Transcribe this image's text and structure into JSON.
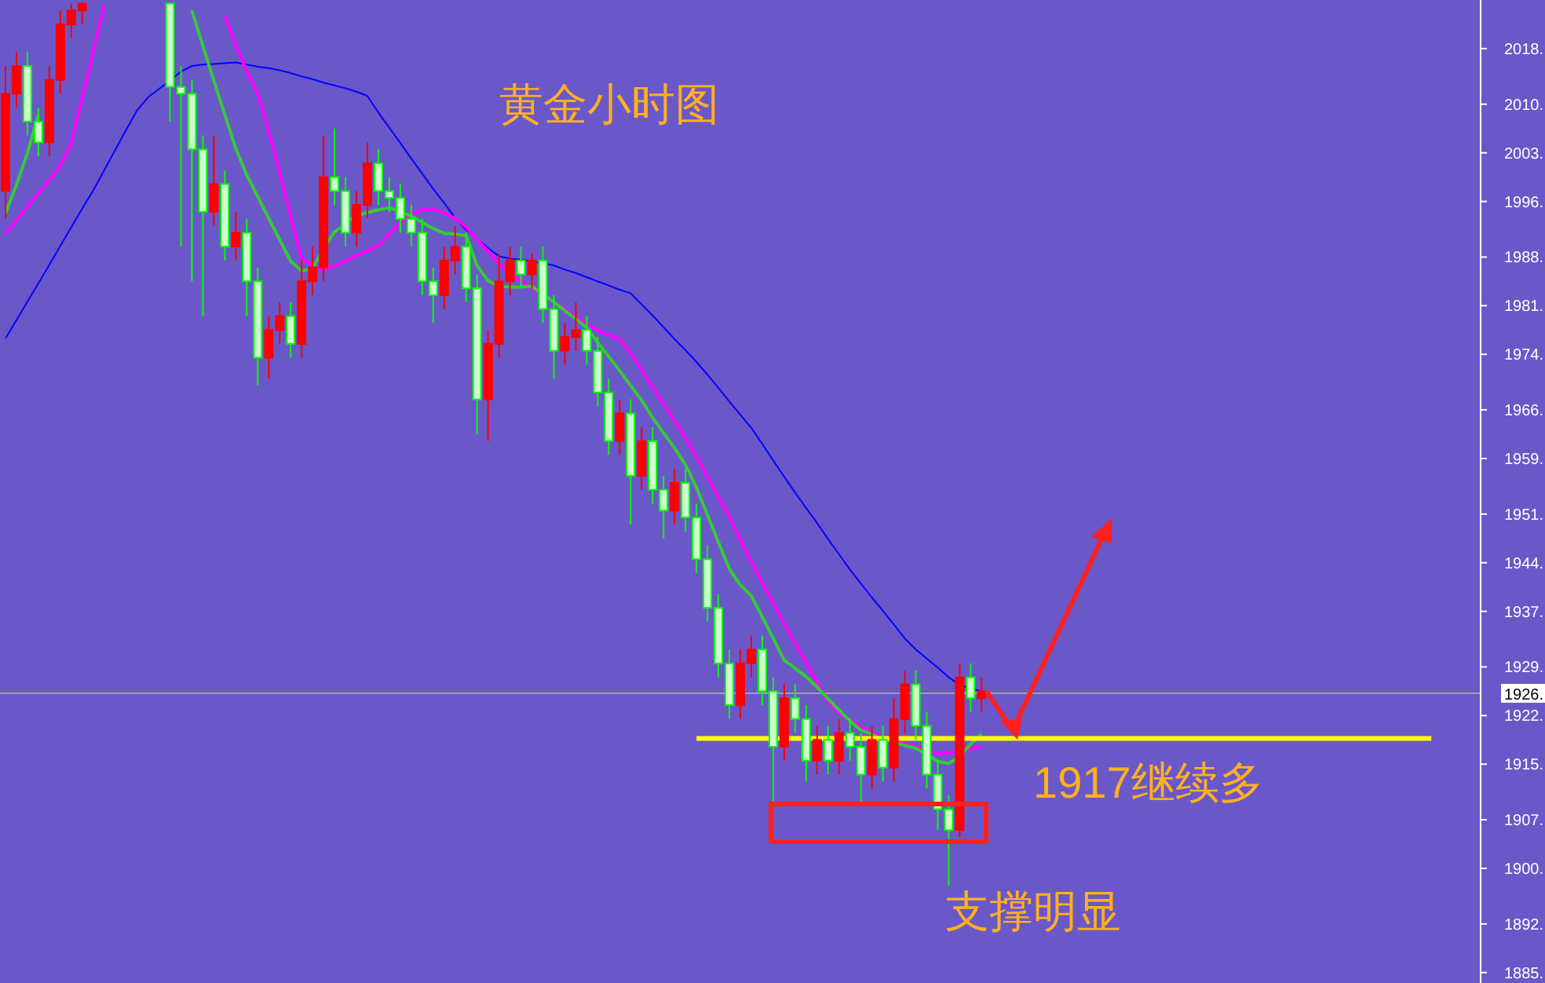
{
  "chart_data": {
    "type": "candlestick",
    "title": "黄金小时图",
    "categories": [
      null,
      null,
      null,
      null,
      null,
      null,
      null,
      null,
      null,
      null,
      null,
      null,
      null,
      null,
      null,
      null,
      null,
      null,
      null,
      null,
      null,
      null,
      null,
      null,
      null,
      null,
      null,
      null,
      null,
      null,
      null,
      null,
      null,
      null,
      null,
      null,
      null,
      null,
      null,
      null,
      null,
      null,
      null,
      null,
      null,
      null,
      null,
      null,
      null,
      null,
      null,
      null,
      null,
      null,
      null,
      null,
      null,
      null,
      null,
      null,
      null,
      null,
      null,
      null,
      null,
      null,
      null,
      null,
      null,
      null,
      null,
      null,
      null,
      null,
      null,
      null,
      null,
      null,
      null,
      null,
      null,
      null,
      null,
      null,
      null,
      null,
      null,
      null,
      null,
      null,
      null,
      null,
      null,
      null,
      null,
      null,
      null,
      null,
      null,
      null,
      null,
      null,
      null,
      null,
      null,
      null,
      null,
      null,
      null,
      null,
      null,
      null,
      null,
      null,
      null,
      null,
      null,
      null,
      null,
      null,
      null,
      null,
      null,
      null,
      null,
      null,
      null,
      null,
      null,
      null,
      null,
      null,
      null,
      null,
      null
    ],
    "ohlc": [
      [
        1998,
        2016,
        1994,
        2012
      ],
      [
        2012,
        2018,
        2010,
        2016
      ],
      [
        2016,
        2018,
        2006,
        2008
      ],
      [
        2008,
        2010,
        2003,
        2005
      ],
      [
        2005,
        2016,
        2003,
        2014
      ],
      [
        2014,
        2024,
        2012,
        2022
      ],
      [
        2022,
        2025,
        2020,
        2024
      ],
      [
        2024,
        2025,
        2022,
        2025
      ],
      null,
      null,
      null,
      null,
      null,
      null,
      null,
      [
        2025,
        2025,
        2008,
        2013
      ],
      [
        2013,
        2016,
        1990,
        2012
      ],
      [
        2012,
        2014,
        1985,
        2004
      ],
      [
        2004,
        2006,
        1980,
        1995
      ],
      [
        1995,
        2006,
        1993,
        1999
      ],
      [
        1999,
        2001,
        1988,
        1990
      ],
      [
        1990,
        1995,
        1988,
        1992
      ],
      [
        1992,
        1994,
        1980,
        1985
      ],
      [
        1985,
        1987,
        1970,
        1974
      ],
      [
        1974,
        1980,
        1971,
        1978
      ],
      [
        1978,
        1982,
        1976,
        1980
      ],
      [
        1980,
        1982,
        1974,
        1976
      ],
      [
        1976,
        1988,
        1974,
        1985
      ],
      [
        1985,
        1990,
        1983,
        1987
      ],
      [
        1987,
        2006,
        1985,
        2000
      ],
      [
        2000,
        2007,
        1996,
        1998
      ],
      [
        1998,
        2000,
        1990,
        1992
      ],
      [
        1992,
        1998,
        1990,
        1996
      ],
      [
        1996,
        2005,
        1994,
        2002
      ],
      [
        2002,
        2004,
        1996,
        1998
      ],
      [
        1998,
        2000,
        1995,
        1997
      ],
      [
        1997,
        1999,
        1992,
        1994
      ],
      [
        1994,
        1996,
        1990,
        1992
      ],
      [
        1992,
        1994,
        1983,
        1985
      ],
      [
        1985,
        1987,
        1979,
        1983
      ],
      [
        1983,
        1990,
        1981,
        1988
      ],
      [
        1988,
        1993,
        1986,
        1990
      ],
      [
        1990,
        1992,
        1982,
        1984
      ],
      [
        1984,
        1986,
        1963,
        1968
      ],
      [
        1968,
        1978,
        1962,
        1976
      ],
      [
        1976,
        1989,
        1974,
        1985
      ],
      [
        1985,
        1990,
        1983,
        1988
      ],
      [
        1988,
        1990,
        1984,
        1986
      ],
      [
        1986,
        1989,
        1984,
        1988
      ],
      [
        1988,
        1990,
        1979,
        1981
      ],
      [
        1981,
        1983,
        1971,
        1975
      ],
      [
        1975,
        1979,
        1973,
        1977
      ],
      [
        1977,
        1982,
        1975,
        1978
      ],
      [
        1978,
        1980,
        1973,
        1975
      ],
      [
        1975,
        1977,
        1967,
        1969
      ],
      [
        1969,
        1971,
        1960,
        1962
      ],
      [
        1962,
        1968,
        1960,
        1966
      ],
      [
        1966,
        1968,
        1950,
        1957
      ],
      [
        1957,
        1964,
        1955,
        1962
      ],
      [
        1962,
        1964,
        1953,
        1955
      ],
      [
        1955,
        1957,
        1948,
        1952
      ],
      [
        1952,
        1958,
        1950,
        1956
      ],
      [
        1956,
        1958,
        1949,
        1951
      ],
      [
        1951,
        1953,
        1943,
        1945
      ],
      [
        1945,
        1947,
        1936,
        1938
      ],
      [
        1938,
        1940,
        1928,
        1930
      ],
      [
        1930,
        1932,
        1922,
        1924
      ],
      [
        1924,
        1932,
        1922,
        1930
      ],
      [
        1930,
        1934,
        1928,
        1932
      ],
      [
        1932,
        1934,
        1924,
        1926
      ],
      [
        1926,
        1928,
        1910,
        1918
      ],
      [
        1918,
        1927,
        1916,
        1925
      ],
      [
        1925,
        1927,
        1920,
        1922
      ],
      [
        1922,
        1924,
        1913,
        1916
      ],
      [
        1916,
        1921,
        1914,
        1919
      ],
      [
        1919,
        1921,
        1914,
        1916
      ],
      [
        1916,
        1922,
        1914,
        1920
      ],
      [
        1920,
        1922,
        1916,
        1918
      ],
      [
        1918,
        1920,
        1910,
        1914
      ],
      [
        1914,
        1921,
        1912,
        1919
      ],
      [
        1919,
        1921,
        1913,
        1915
      ],
      [
        1915,
        1925,
        1913,
        1922
      ],
      [
        1922,
        1929,
        1920,
        1927
      ],
      [
        1927,
        1929,
        1919,
        1921
      ],
      [
        1921,
        1923,
        1912,
        1914
      ],
      [
        1914,
        1916,
        1906,
        1909
      ],
      [
        1909,
        1911,
        1898,
        1906
      ],
      [
        1906,
        1930,
        1905,
        1928
      ],
      [
        1928,
        1930,
        1923,
        1925
      ],
      [
        1925,
        1928,
        1923,
        1926
      ],
      null,
      null,
      null,
      null,
      null,
      null,
      null,
      null,
      null,
      null,
      null,
      null,
      null,
      null,
      null,
      null,
      null,
      null,
      null,
      null,
      null,
      null,
      null,
      null,
      null,
      null,
      null,
      null,
      null,
      null,
      null,
      null,
      null,
      null,
      null,
      null,
      null,
      null,
      null,
      null,
      null,
      null,
      null,
      null,
      null
    ],
    "series": [
      {
        "type": "line",
        "color": "#0000ff",
        "values": [
          1976.8,
          1979.4,
          1982.1,
          1984.7,
          1987.4,
          1990.1,
          1992.8,
          1995.5,
          1998.1,
          2001.0,
          2003.9,
          2006.8,
          2009.6,
          2011.5,
          2012.7,
          2013.9,
          2015.2,
          2016.0,
          2016.2,
          2016.3,
          2016.4,
          2016.5,
          2016.2,
          2015.9,
          2015.7,
          2015.4,
          2015.0,
          2014.5,
          2014.1,
          2013.6,
          2013.2,
          2012.8,
          2012.3,
          2011.7,
          2009.3,
          2007.1,
          2004.9,
          2002.7,
          2000.5,
          1998.3,
          1996.3,
          1994.1,
          1992.4,
          1991.1,
          1989.8,
          1988.6,
          1988.3,
          1988.1,
          1987.9,
          1987.6,
          1987.3,
          1986.7,
          1986.2,
          1985.6,
          1985.0,
          1984.4,
          1983.8,
          1983.3,
          1981.7,
          1980.1,
          1978.4,
          1976.7,
          1975.1,
          1973.4,
          1971.6,
          1969.7,
          1967.7,
          1965.8,
          1963.9,
          1961.6,
          1959.2,
          1956.9,
          1954.6,
          1952.4,
          1950.2,
          1947.9,
          1945.7,
          1943.5,
          1941.5,
          1939.5,
          1937.6,
          1935.6,
          1933.6,
          1932.0,
          1930.7,
          1929.4,
          1928.0,
          1926.9,
          1926.4,
          1926.0,
          null,
          null,
          null,
          null,
          null,
          null,
          null,
          null,
          null,
          null,
          null,
          null,
          null,
          null,
          null,
          null,
          null,
          null,
          null,
          null,
          null,
          null,
          null,
          null,
          null,
          null,
          null,
          null,
          null,
          null,
          null,
          null,
          null,
          null,
          null,
          null,
          null,
          null,
          null,
          null,
          null,
          null,
          null,
          null,
          null
        ]
      },
      {
        "type": "line",
        "color": "#ff00ff",
        "values": [
          1991.9,
          1993.8,
          1995.8,
          1997.7,
          1999.6,
          2001.6,
          2004.9,
          2011.5,
          2018.2,
          2024.8,
          null,
          null,
          null,
          null,
          null,
          null,
          null,
          null,
          null,
          null,
          2023.1,
          2019.1,
          2015.1,
          2012.0,
          2006.7,
          2000.6,
          1994.4,
          1988.3,
          1987.2,
          1986.7,
          1987.2,
          1987.9,
          1988.7,
          1989.4,
          1990.2,
          1991.8,
          1993.4,
          1994.7,
          1995.3,
          1995.4,
          1994.8,
          1994.1,
          1992.8,
          1991.0,
          1989.3,
          1987.5,
          1986.2,
          1985.1,
          1984.0,
          1983.0,
          1982.0,
          1981.0,
          1979.9,
          1978.9,
          1977.9,
          1977.3,
          1976.6,
          1974.7,
          1972.3,
          1969.8,
          1967.4,
          1964.9,
          1962.5,
          1959.8,
          1956.9,
          1954.0,
          1951.1,
          1947.8,
          1944.7,
          1941.6,
          1938.6,
          1935.7,
          1932.9,
          1930.1,
          1927.3,
          1924.5,
          1922.9,
          1921.9,
          1920.9,
          1919.9,
          1919.5,
          1919.0,
          1918.5,
          1918.0,
          1917.6,
          1917.0,
          1917.1,
          1917.4,
          1917.8,
          1918.0,
          null,
          null,
          null,
          null,
          null,
          null,
          null,
          null,
          null,
          null,
          null,
          null,
          null,
          null,
          null,
          null,
          null,
          null,
          null,
          null,
          null,
          null,
          null,
          null,
          null,
          null,
          null,
          null,
          null,
          null,
          null,
          null,
          null,
          null,
          null,
          null,
          null,
          null,
          null,
          null,
          null,
          null,
          null,
          null,
          null
        ]
      },
      {
        "type": "line",
        "color": "#33cc33",
        "values": [
          1994.8,
          1998.9,
          2003.5,
          2009.0,
          null,
          null,
          null,
          null,
          null,
          null,
          null,
          null,
          null,
          null,
          null,
          null,
          null,
          2024.0,
          2018.9,
          2013.9,
          2009.0,
          2004.1,
          2000.3,
          1997.2,
          1994.1,
          1991.0,
          1987.9,
          1986.5,
          1986.8,
          1989.8,
          1992.1,
          1993.3,
          1994.5,
          1994.9,
          1995.3,
          1995.6,
          1995.0,
          1994.4,
          1993.5,
          1992.6,
          1991.9,
          1991.8,
          1991.6,
          1987.2,
          1985.1,
          1984.3,
          1984.2,
          1984.2,
          1984.3,
          1983.2,
          1982.0,
          1980.8,
          1979.6,
          1978.3,
          1976.2,
          1974.2,
          1972.1,
          1970.0,
          1967.9,
          1965.4,
          1963.2,
          1961.0,
          1958.6,
          1955.3,
          1951.4,
          1947.5,
          1943.6,
          1941.3,
          1939.7,
          1936.7,
          1933.6,
          1930.5,
          1929.3,
          1928.1,
          1926.6,
          1924.9,
          1923.3,
          1921.7,
          1920.4,
          1919.8,
          1919.0,
          1918.6,
          1918.2,
          1917.8,
          1916.9,
          1915.9,
          1915.6,
          1916.6,
          1918.4,
          1919.9,
          null,
          null,
          null,
          null,
          null,
          null,
          null,
          null,
          null,
          null,
          null,
          null,
          null,
          null,
          null,
          null,
          null,
          null,
          null,
          null,
          null,
          null,
          null,
          null,
          null,
          null,
          null,
          null,
          null,
          null,
          null,
          null,
          null,
          null,
          null,
          null,
          null,
          null,
          null,
          null,
          null,
          null,
          null,
          null,
          null
        ]
      },
      {
        "type": "line",
        "color": "#ffff00",
        "values": [
          null,
          null,
          null,
          null,
          null,
          null,
          null,
          null,
          null,
          null,
          null,
          null,
          null,
          null,
          null,
          null,
          null,
          null,
          null,
          null,
          null,
          null,
          null,
          null,
          null,
          null,
          null,
          null,
          null,
          null,
          null,
          null,
          null,
          null,
          null,
          null,
          null,
          null,
          null,
          null,
          null,
          null,
          null,
          null,
          null,
          null,
          null,
          null,
          null,
          null,
          null,
          null,
          null,
          null,
          null,
          null,
          null,
          null,
          null,
          null,
          null,
          null,
          null,
          1919.2,
          1919.2,
          1919.2,
          1919.2,
          1919.2,
          1919.2,
          1919.2,
          1919.2,
          1919.2,
          1919.2,
          1919.2,
          1919.2,
          1919.2,
          1919.2,
          1919.2,
          1919.2,
          1919.2,
          1919.2,
          1919.2,
          1919.2,
          1919.2,
          1919.2,
          1919.2,
          1919.2,
          1919.2,
          1919.2,
          1919.2,
          1919.2,
          1919.2,
          1919.2,
          1919.2,
          1919.2,
          1919.2,
          1919.2,
          1919.2,
          1919.2,
          1919.2,
          1919.2,
          1919.2,
          1919.2,
          1919.2,
          1919.2,
          1919.2,
          1919.2,
          1919.2,
          1919.2,
          1919.2,
          1919.2,
          1919.2,
          1919.2,
          1919.2,
          1919.2,
          1919.2,
          1919.2,
          1919.2,
          1919.2,
          1919.2,
          1919.2,
          1919.2,
          1919.2,
          1919.2,
          1919.2,
          1919.2,
          1919.2,
          1919.2,
          1919.2,
          1919.2,
          1919.2,
          null,
          null,
          null,
          null
        ]
      }
    ],
    "ylim": [
      1884,
      2025.5
    ],
    "yticks": [
      {
        "value": 1885.5,
        "label": "1885."
      },
      {
        "value": 1892.5,
        "label": "1892."
      },
      {
        "value": 1900.5,
        "label": "1900."
      },
      {
        "value": 1907.5,
        "label": "1907."
      },
      {
        "value": 1915.5,
        "label": "1915."
      },
      {
        "value": 1922.5,
        "label": "1922."
      },
      {
        "value": 1929.5,
        "label": "1929."
      },
      {
        "value": 1937.5,
        "label": "1937."
      },
      {
        "value": 1944.5,
        "label": "1944."
      },
      {
        "value": 1951.5,
        "label": "1951."
      },
      {
        "value": 1959.5,
        "label": "1959."
      },
      {
        "value": 1966.5,
        "label": "1966."
      },
      {
        "value": 1974.5,
        "label": "1974."
      },
      {
        "value": 1981.5,
        "label": "1981."
      },
      {
        "value": 1988.5,
        "label": "1988."
      },
      {
        "value": 1996.5,
        "label": "1996."
      },
      {
        "value": 2003.5,
        "label": "2003."
      },
      {
        "value": 2010.5,
        "label": "2010."
      },
      {
        "value": 2018.5,
        "label": "2018."
      }
    ],
    "ref_lines": [
      {
        "axis": "y",
        "value": 1925.7,
        "label": "1926.",
        "color": "#a0a0a0"
      }
    ],
    "annotations": [
      "1917继续多",
      "支撑明显"
    ],
    "tick_labels": "y"
  }
}
